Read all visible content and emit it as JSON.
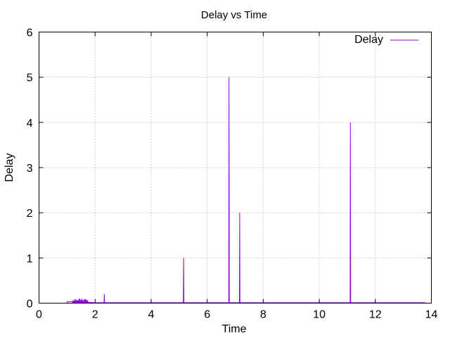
{
  "chart_data": {
    "type": "line",
    "title": "Delay vs Time",
    "xlabel": "Time",
    "ylabel": "Delay",
    "xlim": [
      0,
      14
    ],
    "ylim": [
      0,
      6
    ],
    "xticks": [
      0,
      2,
      4,
      6,
      8,
      10,
      12,
      14
    ],
    "yticks": [
      0,
      1,
      2,
      3,
      4,
      5,
      6
    ],
    "grid": true,
    "legend_position": "top-right",
    "series": [
      {
        "name": "Delay",
        "color": "#9400d3",
        "x": [
          1.0,
          1.0,
          1.6,
          1.7,
          2.0,
          2.32,
          2.33,
          2.34,
          2.5,
          5.15,
          5.16,
          5.17,
          5.2,
          6.77,
          6.78,
          6.79,
          6.85,
          7.15,
          7.16,
          7.17,
          7.2,
          11.1,
          11.11,
          11.12,
          11.2,
          13.8
        ],
        "y": [
          0.0,
          0.03,
          0.03,
          0.02,
          0.01,
          0.01,
          0.2,
          0.01,
          0.01,
          0.01,
          1.0,
          0.01,
          0.01,
          0.01,
          5.0,
          0.01,
          0.01,
          0.01,
          2.0,
          0.01,
          0.01,
          0.01,
          4.0,
          0.01,
          0.01,
          0.01
        ]
      }
    ],
    "noise_region": {
      "x_from": 1.2,
      "x_to": 1.75,
      "y_max": 0.1
    }
  }
}
